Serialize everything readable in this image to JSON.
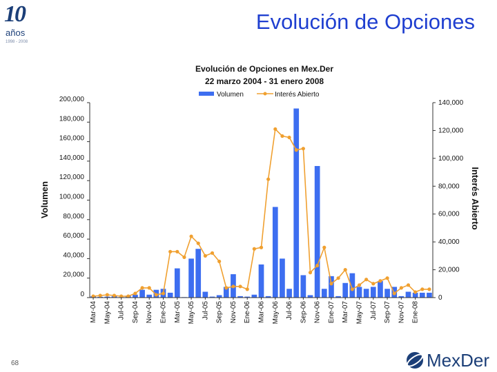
{
  "slide": {
    "title": "Evolución de Opciones",
    "page_number": "68",
    "anniversary_logo": {
      "number": "10",
      "word": "años",
      "years": "1998 - 2008"
    },
    "brand_logo": {
      "text": "MexDer"
    }
  },
  "colors": {
    "bar": "#3d6ef0",
    "line": "#f0a030",
    "title": "#1f3fd0",
    "axis": "#333333"
  },
  "chart_data": {
    "type": "bar+line",
    "title": "Evolución de Opciones en Mex.Der",
    "subtitle": "22 marzo 2004 - 31 enero 2008",
    "ylabel_left": "Volumen",
    "ylabel_right": "Interés Abierto",
    "ylim_left": [
      0,
      200000
    ],
    "ylim_right": [
      0,
      140000
    ],
    "yticks_left": [
      "0",
      "20,000",
      "40,000",
      "60,000",
      "80,000",
      "100,000",
      "120,000",
      "140,000",
      "160,000",
      "180,000",
      "200,000"
    ],
    "yticks_right": [
      "0",
      "20,000",
      "40,000",
      "60,000",
      "80,000",
      "100,000",
      "120,000",
      "140,000"
    ],
    "legend": {
      "bars": "Volumen",
      "line": "Interés Abierto",
      "placement": "top"
    },
    "x_tick_labels": [
      "Mar-04",
      "May-04",
      "Jul-04",
      "Sep-04",
      "Nov-04",
      "Ene-05",
      "Mar-05",
      "May-05",
      "Jul-05",
      "Sep-05",
      "Nov-05",
      "Ene-06",
      "Mar-06",
      "May-06",
      "Jul-06",
      "Sep-06",
      "Nov-06",
      "Ene-07",
      "Mar-07",
      "May-07",
      "Jul-07",
      "Sep-07",
      "Nov-07",
      "Ene-08"
    ],
    "series": [
      {
        "name": "Volumen",
        "kind": "bar",
        "axis": "left",
        "values": [
          1500,
          800,
          1000,
          1500,
          500,
          2000,
          3000,
          8000,
          3000,
          8000,
          9000,
          5000,
          30000,
          500,
          40000,
          50000,
          6000,
          1000,
          2500,
          11000,
          24000,
          1500,
          1000,
          3000,
          34000,
          1500,
          93000,
          40000,
          9000,
          194000,
          23000,
          2500,
          135000,
          9000,
          22000,
          1500,
          15000,
          25000,
          11000,
          9000,
          11000,
          17000,
          9000,
          11000,
          1500,
          6000,
          5000,
          5000,
          5000
        ]
      },
      {
        "name": "Interés Abierto",
        "kind": "line",
        "axis": "right",
        "values": [
          1000,
          1500,
          2000,
          1500,
          1000,
          1000,
          3000,
          7000,
          7000,
          2000,
          3000,
          33000,
          33000,
          29000,
          44000,
          39000,
          30000,
          32000,
          26000,
          7000,
          8000,
          8000,
          6000,
          35000,
          36000,
          85000,
          121000,
          116000,
          115000,
          106000,
          107000,
          18000,
          23000,
          36000,
          10000,
          14000,
          20000,
          6000,
          9000,
          13000,
          10000,
          12000,
          14000,
          3000,
          7000,
          9000,
          4000,
          6000,
          6000
        ]
      }
    ]
  }
}
